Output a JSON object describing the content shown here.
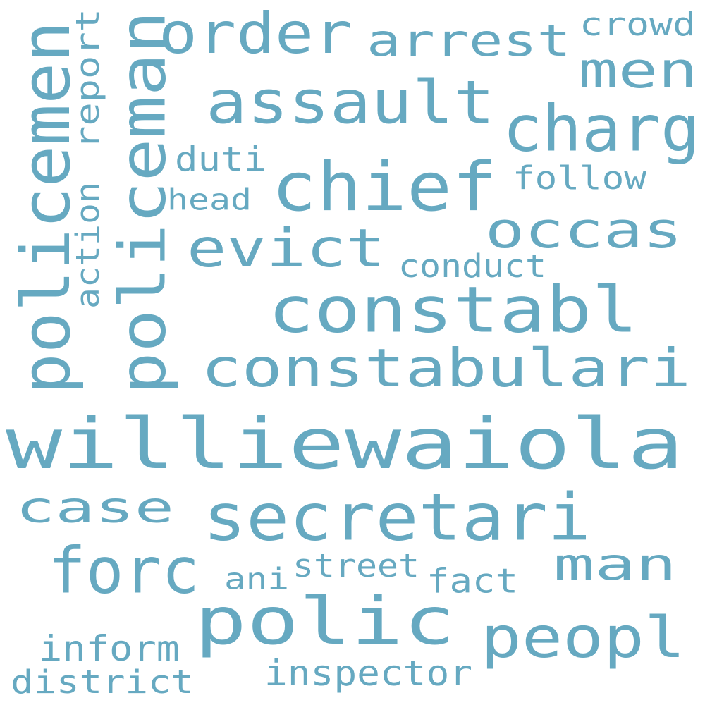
{
  "word_color": "#66a9c1",
  "background": "#ffffff",
  "words": [
    {
      "key": "williewaiola",
      "text": "williewaiola"
    },
    {
      "key": "polic",
      "text": "polic"
    },
    {
      "key": "constabl",
      "text": "constabl"
    },
    {
      "key": "constabulari",
      "text": "constabulari"
    },
    {
      "key": "secretari",
      "text": "secretari"
    },
    {
      "key": "chief",
      "text": "chief"
    },
    {
      "key": "assault",
      "text": "assault"
    },
    {
      "key": "order",
      "text": "order"
    },
    {
      "key": "policeman",
      "text": "policeman"
    },
    {
      "key": "policemen",
      "text": "policemen"
    },
    {
      "key": "evict",
      "text": "evict"
    },
    {
      "key": "charg",
      "text": "charg"
    },
    {
      "key": "men",
      "text": "men"
    },
    {
      "key": "arrest",
      "text": "arrest"
    },
    {
      "key": "occas",
      "text": "occas"
    },
    {
      "key": "case",
      "text": "case"
    },
    {
      "key": "forc",
      "text": "forc"
    },
    {
      "key": "man",
      "text": "man"
    },
    {
      "key": "peopl",
      "text": "peopl"
    },
    {
      "key": "inform",
      "text": "inform"
    },
    {
      "key": "district",
      "text": "district"
    },
    {
      "key": "inspector",
      "text": "inspector"
    },
    {
      "key": "street",
      "text": "street"
    },
    {
      "key": "ani",
      "text": "ani"
    },
    {
      "key": "fact",
      "text": "fact"
    },
    {
      "key": "conduct",
      "text": "conduct"
    },
    {
      "key": "follow",
      "text": "follow"
    },
    {
      "key": "head",
      "text": "head"
    },
    {
      "key": "duti",
      "text": "duti"
    },
    {
      "key": "crowd",
      "text": "crowd"
    },
    {
      "key": "report",
      "text": "report"
    },
    {
      "key": "action",
      "text": "action"
    }
  ]
}
